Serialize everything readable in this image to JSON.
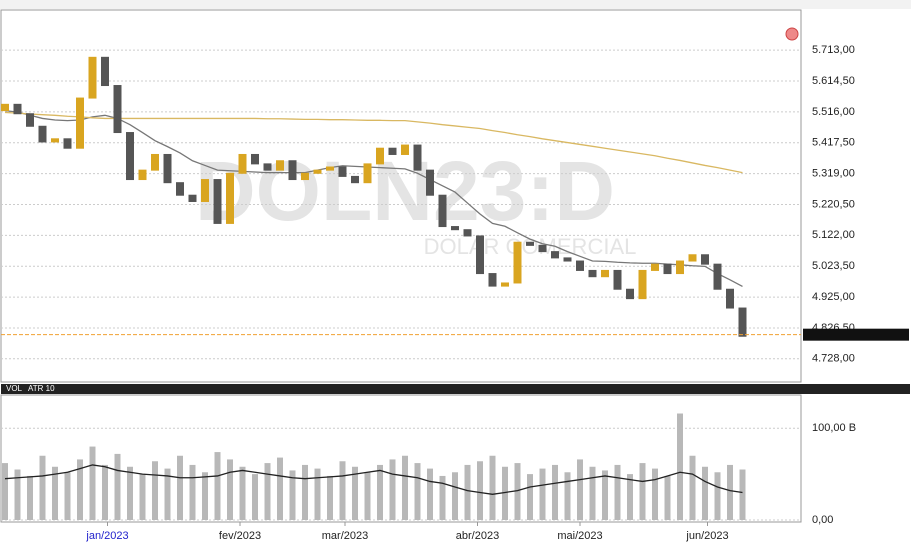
{
  "chart_data": [
    {
      "type": "candlestick",
      "watermark": "DOLN23:D",
      "watermark_subtitle": "DOLAR COMERCIAL",
      "x": [
        0,
        1,
        2,
        3,
        4,
        5,
        6,
        7,
        8,
        9,
        10,
        11,
        12,
        13,
        14,
        15,
        16,
        17,
        18,
        19,
        20,
        21,
        22,
        23,
        24,
        25,
        26,
        27,
        28,
        29,
        30,
        31,
        32,
        33,
        34,
        35,
        36,
        37,
        38,
        39,
        40,
        41,
        42,
        43,
        44,
        45,
        46,
        47,
        48,
        49,
        50,
        51,
        52,
        53,
        54,
        55,
        56,
        57,
        58,
        59
      ],
      "xlim": [
        0,
        60
      ],
      "open": [
        5520,
        5540,
        5510,
        5470,
        5420,
        5430,
        5400,
        5560,
        5690,
        5600,
        5450,
        5300,
        5330,
        5380,
        5290,
        5250,
        5230,
        5300,
        5160,
        5320,
        5380,
        5350,
        5330,
        5360,
        5300,
        5320,
        5330,
        5340,
        5310,
        5290,
        5350,
        5400,
        5380,
        5410,
        5330,
        5250,
        5150,
        5140,
        5120,
        5000,
        4960,
        4970,
        5100,
        5090,
        5070,
        5050,
        5040,
        5010,
        4990,
        5010,
        4950,
        4920,
        5010,
        5030,
        5000,
        5040,
        5060,
        5030,
        4950,
        4890
      ],
      "close": [
        5540,
        5510,
        5470,
        5420,
        5430,
        5400,
        5560,
        5690,
        5600,
        5450,
        5300,
        5330,
        5380,
        5290,
        5250,
        5230,
        5300,
        5160,
        5320,
        5380,
        5350,
        5330,
        5360,
        5300,
        5320,
        5330,
        5340,
        5310,
        5290,
        5350,
        5400,
        5380,
        5410,
        5330,
        5250,
        5150,
        5140,
        5120,
        5000,
        4960,
        4970,
        5100,
        5090,
        5070,
        5050,
        5040,
        5010,
        4990,
        5010,
        4950,
        4920,
        5010,
        5030,
        5000,
        5040,
        5060,
        5030,
        4950,
        4890,
        4800
      ],
      "up_color": "#d9a520",
      "down_color": "#555555",
      "series": [
        {
          "color": "#777777",
          "values": [
            5520,
            5515,
            5505,
            5495,
            5490,
            5488,
            5490,
            5500,
            5505,
            5495,
            5475,
            5450,
            5424,
            5405,
            5385,
            5360,
            5345,
            5330,
            5328,
            5326,
            5324,
            5322,
            5322,
            5322,
            5322,
            5330,
            5338,
            5344,
            5342,
            5340,
            5338,
            5336,
            5334,
            5320,
            5300,
            5280,
            5260,
            5225,
            5190,
            5160,
            5151,
            5130,
            5110,
            5095,
            5087,
            5070,
            5055,
            5040,
            5039,
            5036,
            5034,
            5033,
            5033,
            5030,
            5028,
            5025,
            5023,
            5000,
            4980,
            4959
          ]
        },
        {
          "color": "#d9b862",
          "values": [
            5514,
            5512,
            5509,
            5507,
            5505,
            5502,
            5500,
            5497,
            5495,
            5495,
            5495,
            5495,
            5495,
            5495,
            5495,
            5495,
            5495,
            5495,
            5495,
            5495,
            5495,
            5494,
            5494,
            5493,
            5492,
            5492,
            5491,
            5491,
            5490,
            5489,
            5489,
            5488,
            5488,
            5484,
            5480,
            5475,
            5471,
            5467,
            5463,
            5456,
            5450,
            5443,
            5437,
            5430,
            5424,
            5418,
            5412,
            5406,
            5400,
            5394,
            5388,
            5382,
            5376,
            5368,
            5361,
            5353,
            5345,
            5338,
            5330,
            5322
          ]
        }
      ],
      "last_price": 4805,
      "last_price_color": "#f0a030",
      "ylim": [
        4654,
        5841
      ],
      "yticks": [
        {
          "value": 5713,
          "label": "5.713,00"
        },
        {
          "value": 5614.5,
          "label": "5.614,50"
        },
        {
          "value": 5516,
          "label": "5.516,00"
        },
        {
          "value": 5417.5,
          "label": "5.417,50"
        },
        {
          "value": 5319,
          "label": "5.319,00"
        },
        {
          "value": 5220.5,
          "label": "5.220,50"
        },
        {
          "value": 5122,
          "label": "5.122,00"
        },
        {
          "value": 5023.5,
          "label": "5.023,50"
        },
        {
          "value": 4925,
          "label": "4.925,00"
        },
        {
          "value": 4826.5,
          "label": "4.826,50"
        },
        {
          "value": 4728,
          "label": "4.728,00"
        }
      ],
      "grid": true
    },
    {
      "type": "bar",
      "panel_labels": [
        "VOL",
        "ATR 10"
      ],
      "x": [
        0,
        1,
        2,
        3,
        4,
        5,
        6,
        7,
        8,
        9,
        10,
        11,
        12,
        13,
        14,
        15,
        16,
        17,
        18,
        19,
        20,
        21,
        22,
        23,
        24,
        25,
        26,
        27,
        28,
        29,
        30,
        31,
        32,
        33,
        34,
        35,
        36,
        37,
        38,
        39,
        40,
        41,
        42,
        43,
        44,
        45,
        46,
        47,
        48,
        49,
        50,
        51,
        52,
        53,
        54,
        55,
        56,
        57,
        58,
        59
      ],
      "xlim": [
        0,
        60
      ],
      "xticks": [
        {
          "value": 8.2,
          "label": "jan/2023"
        },
        {
          "value": 18.8,
          "label": "fev/2023"
        },
        {
          "value": 27.2,
          "label": "mar/2023"
        },
        {
          "value": 37.8,
          "label": "abr/2023"
        },
        {
          "value": 46,
          "label": "mai/2023"
        },
        {
          "value": 56.2,
          "label": "jun/2023"
        }
      ],
      "series": [
        {
          "name": "VOL",
          "color": "#b8b8b8",
          "values": [
            62,
            55,
            48,
            70,
            58,
            52,
            66,
            80,
            60,
            72,
            58,
            50,
            64,
            56,
            70,
            60,
            52,
            74,
            66,
            58,
            50,
            62,
            68,
            54,
            60,
            56,
            48,
            64,
            58,
            52,
            60,
            66,
            70,
            62,
            56,
            48,
            52,
            60,
            64,
            70,
            58,
            62,
            50,
            56,
            60,
            52,
            66,
            58,
            54,
            60,
            50,
            62,
            56,
            48,
            116,
            70,
            58,
            52,
            60,
            55
          ]
        },
        {
          "color": "#222222",
          "values": [
            45,
            46,
            47,
            48,
            50,
            52,
            56,
            60,
            58,
            54,
            52,
            50,
            49,
            48,
            46,
            46,
            47,
            48,
            52,
            54,
            52,
            50,
            48,
            46,
            45,
            46,
            47,
            48,
            50,
            52,
            54,
            50,
            48,
            46,
            42,
            40,
            36,
            32,
            30,
            28,
            30,
            32,
            36,
            38,
            40,
            42,
            44,
            46,
            48,
            46,
            44,
            42,
            44,
            48,
            52,
            50,
            42,
            36,
            32,
            30
          ]
        }
      ],
      "ylim": [
        0,
        134
      ],
      "yticks": [
        {
          "value": 100,
          "label": "100,00 B"
        },
        {
          "value": 0,
          "label": "0,00"
        }
      ],
      "grid": true
    }
  ]
}
